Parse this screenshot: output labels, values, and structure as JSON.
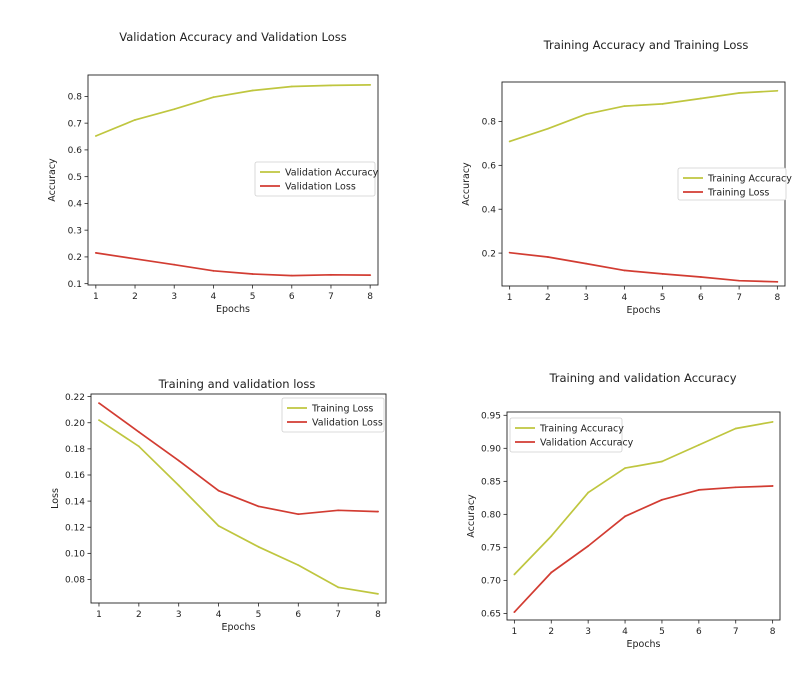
{
  "colors": {
    "accuracy_line": "#bfc63f",
    "loss_line": "#d23c32"
  },
  "chart_data": [
    {
      "id": "val",
      "type": "line",
      "title": "Validation Accuracy and Validation Loss",
      "xlabel": "Epochs",
      "ylabel": "Accuracy",
      "x": [
        1,
        2,
        3,
        4,
        5,
        6,
        7,
        8
      ],
      "xticks": [
        1,
        2,
        3,
        4,
        5,
        6,
        7,
        8
      ],
      "xlim": [
        0.8,
        8.2
      ],
      "ylim": [
        0.095,
        0.88
      ],
      "yticks": [
        "0.1",
        "0.2",
        "0.3",
        "0.4",
        "0.5",
        "0.6",
        "0.7",
        "0.8"
      ],
      "legend": "center-right",
      "grid": false,
      "series": [
        {
          "name": "Validation Accuracy",
          "color": "#bfc63f",
          "values": [
            0.652,
            0.712,
            0.752,
            0.797,
            0.822,
            0.837,
            0.841,
            0.843
          ]
        },
        {
          "name": "Validation Loss",
          "color": "#d23c32",
          "values": [
            0.215,
            0.193,
            0.171,
            0.148,
            0.136,
            0.13,
            0.133,
            0.132
          ]
        }
      ]
    },
    {
      "id": "train",
      "type": "line",
      "title": "Training Accuracy and Training Loss",
      "xlabel": "Epochs",
      "ylabel": "Accuracy",
      "x": [
        1,
        2,
        3,
        4,
        5,
        6,
        7,
        8
      ],
      "xticks": [
        1,
        2,
        3,
        4,
        5,
        6,
        7,
        8
      ],
      "xlim": [
        0.8,
        8.2
      ],
      "ylim": [
        0.05,
        0.98
      ],
      "yticks": [
        "0.2",
        "0.4",
        "0.6",
        "0.8"
      ],
      "legend": "center-right",
      "grid": false,
      "series": [
        {
          "name": "Training Accuracy",
          "color": "#bfc63f",
          "values": [
            0.709,
            0.767,
            0.833,
            0.87,
            0.88,
            0.905,
            0.93,
            0.94
          ]
        },
        {
          "name": "Training Loss",
          "color": "#d23c32",
          "values": [
            0.202,
            0.182,
            0.152,
            0.121,
            0.105,
            0.091,
            0.074,
            0.069
          ]
        }
      ]
    },
    {
      "id": "loss",
      "type": "line",
      "title": "Training and validation loss",
      "xlabel": "Epochs",
      "ylabel": "Loss",
      "x": [
        1,
        2,
        3,
        4,
        5,
        6,
        7,
        8
      ],
      "xticks": [
        1,
        2,
        3,
        4,
        5,
        6,
        7,
        8
      ],
      "xlim": [
        0.8,
        8.2
      ],
      "ylim": [
        0.062,
        0.222
      ],
      "yticks": [
        "0.08",
        "0.10",
        "0.12",
        "0.14",
        "0.16",
        "0.18",
        "0.20",
        "0.22"
      ],
      "legend": "top-right",
      "grid": false,
      "series": [
        {
          "name": "Training Loss",
          "color": "#bfc63f",
          "values": [
            0.202,
            0.182,
            0.152,
            0.121,
            0.105,
            0.091,
            0.074,
            0.069
          ]
        },
        {
          "name": "Validation Loss",
          "color": "#d23c32",
          "values": [
            0.215,
            0.193,
            0.171,
            0.148,
            0.136,
            0.13,
            0.133,
            0.132
          ]
        }
      ]
    },
    {
      "id": "acc",
      "type": "line",
      "title": "Training and validation Accuracy",
      "xlabel": "Epochs",
      "ylabel": "Accuracy",
      "x": [
        1,
        2,
        3,
        4,
        5,
        6,
        7,
        8
      ],
      "xticks": [
        1,
        2,
        3,
        4,
        5,
        6,
        7,
        8
      ],
      "xlim": [
        0.8,
        8.2
      ],
      "ylim": [
        0.64,
        0.955
      ],
      "yticks": [
        "0.65",
        "0.70",
        "0.75",
        "0.80",
        "0.85",
        "0.90",
        "0.95"
      ],
      "legend": "top-left",
      "grid": false,
      "series": [
        {
          "name": "Training Accuracy",
          "color": "#bfc63f",
          "values": [
            0.709,
            0.767,
            0.833,
            0.87,
            0.88,
            0.905,
            0.93,
            0.94
          ]
        },
        {
          "name": "Validation Accuracy",
          "color": "#d23c32",
          "values": [
            0.652,
            0.712,
            0.752,
            0.797,
            0.822,
            0.837,
            0.841,
            0.843
          ]
        }
      ]
    }
  ]
}
